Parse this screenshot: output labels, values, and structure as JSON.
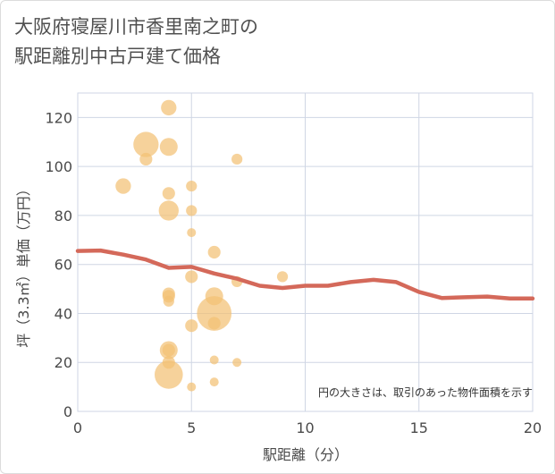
{
  "title_line1": "大阪府寝屋川市香里南之町の",
  "title_line2": "駅距離別中古戸建て価格",
  "chart_data": {
    "type": "scatter",
    "title": "大阪府寝屋川市香里南之町の駅距離別中古戸建て価格",
    "xlabel": "駅距離（分）",
    "ylabel": "坪（3.3㎡）単価（万円）",
    "xlim": [
      0,
      20
    ],
    "ylim": [
      0,
      130
    ],
    "xticks": [
      0,
      5,
      10,
      15,
      20
    ],
    "yticks": [
      0,
      20,
      40,
      60,
      80,
      100,
      120
    ],
    "note": "円の大きさは、取引のあった物件面積を示す",
    "colors": {
      "bubble": "#f3c074",
      "line": "#d4695a",
      "grid": "#cfd6e4"
    },
    "bubbles": [
      {
        "x": 2,
        "y": 92,
        "size": 3
      },
      {
        "x": 3,
        "y": 109,
        "size": 8
      },
      {
        "x": 3,
        "y": 103,
        "size": 2
      },
      {
        "x": 4,
        "y": 124,
        "size": 3
      },
      {
        "x": 4,
        "y": 108,
        "size": 4
      },
      {
        "x": 4,
        "y": 89,
        "size": 2
      },
      {
        "x": 4,
        "y": 82,
        "size": 5
      },
      {
        "x": 4,
        "y": 48,
        "size": 2
      },
      {
        "x": 4,
        "y": 47,
        "size": 2
      },
      {
        "x": 4,
        "y": 45,
        "size": 1.5
      },
      {
        "x": 4,
        "y": 25,
        "size": 4
      },
      {
        "x": 4,
        "y": 25,
        "size": 2
      },
      {
        "x": 4,
        "y": 20,
        "size": 2
      },
      {
        "x": 4,
        "y": 15,
        "size": 10
      },
      {
        "x": 5,
        "y": 92,
        "size": 1.5
      },
      {
        "x": 5,
        "y": 82,
        "size": 1.5
      },
      {
        "x": 5,
        "y": 73,
        "size": 1
      },
      {
        "x": 5,
        "y": 55,
        "size": 2
      },
      {
        "x": 5,
        "y": 35,
        "size": 2
      },
      {
        "x": 5,
        "y": 10,
        "size": 1
      },
      {
        "x": 6,
        "y": 65,
        "size": 2
      },
      {
        "x": 6,
        "y": 47,
        "size": 4
      },
      {
        "x": 6,
        "y": 40,
        "size": 15
      },
      {
        "x": 6,
        "y": 36,
        "size": 2
      },
      {
        "x": 6,
        "y": 21,
        "size": 1
      },
      {
        "x": 6,
        "y": 12,
        "size": 1
      },
      {
        "x": 7,
        "y": 103,
        "size": 1.5
      },
      {
        "x": 7,
        "y": 53,
        "size": 1.5
      },
      {
        "x": 7,
        "y": 20,
        "size": 1
      },
      {
        "x": 9,
        "y": 55,
        "size": 1.5
      }
    ],
    "trend": {
      "x": [
        0,
        1,
        2,
        3,
        4,
        5,
        6,
        7,
        8,
        9,
        10,
        11,
        12,
        13,
        14,
        15,
        16,
        17,
        18,
        19,
        20
      ],
      "y": [
        65.5,
        65.7,
        64,
        62,
        58.6,
        59,
        56.3,
        54.2,
        51.3,
        50.4,
        51.3,
        51.3,
        52.8,
        53.7,
        52.8,
        48.8,
        46.3,
        46.6,
        46.9,
        46.1,
        46.1
      ]
    }
  }
}
